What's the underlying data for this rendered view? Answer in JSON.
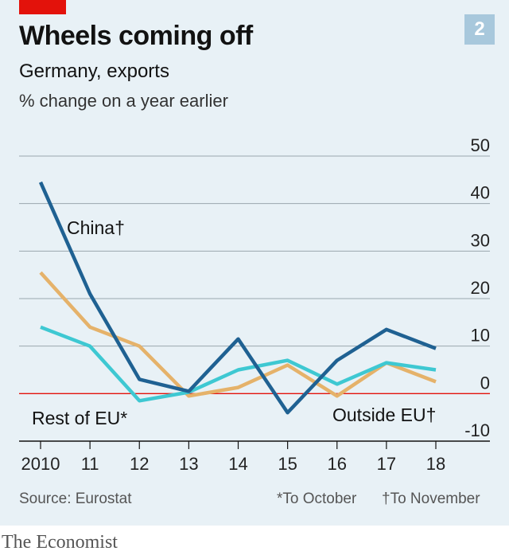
{
  "header": {
    "title": "Wheels coming off",
    "subtitle": "Germany, exports",
    "unit": "% change on a year earlier",
    "chart_number": "2"
  },
  "footer": {
    "source": "Source: Eurostat",
    "note_october": "*To October",
    "note_november": "†To November",
    "brand": "The Economist"
  },
  "colors": {
    "background": "#e8f1f6",
    "tag": "#e3120b",
    "number_box": "#a8c8dc",
    "china": "#1f6192",
    "rest_of_eu": "#e5b26a",
    "outside_eu": "#3ec8d2",
    "zero_line": "#e3120b",
    "gridline": "#9aa6ae",
    "axis": "#121212"
  },
  "chart_data": {
    "type": "line",
    "title": "Wheels coming off",
    "subtitle": "Germany, exports",
    "ylabel": "% change on a year earlier",
    "x": [
      "2010",
      "11",
      "12",
      "13",
      "14",
      "15",
      "16",
      "17",
      "18"
    ],
    "y_ticks": [
      50,
      40,
      30,
      20,
      10,
      0,
      -10
    ],
    "ylim": [
      -10,
      50
    ],
    "grid": true,
    "y_axis_side": "right",
    "series": [
      {
        "name": "China†",
        "color_key": "china",
        "values": [
          44.5,
          21,
          3,
          0.5,
          11.5,
          -4,
          7,
          13.5,
          9.5
        ]
      },
      {
        "name": "Rest of EU*",
        "color_key": "rest_of_eu",
        "values": [
          25.5,
          14,
          10,
          -0.5,
          1.3,
          6,
          -0.5,
          6.5,
          2.5
        ]
      },
      {
        "name": "Outside EU†",
        "color_key": "outside_eu",
        "values": [
          14,
          10,
          -1.5,
          0.3,
          5,
          7,
          2,
          6.5,
          5
        ]
      }
    ]
  }
}
